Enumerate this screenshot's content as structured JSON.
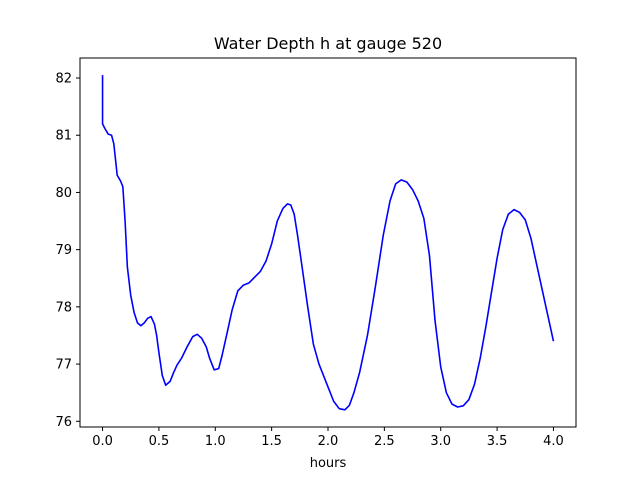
{
  "chart_data": {
    "type": "line",
    "title": "Water Depth h at gauge 520",
    "xlabel": "hours",
    "ylabel": "",
    "xlim": [
      -0.2,
      4.2
    ],
    "ylim": [
      75.9,
      82.35
    ],
    "xticks": [
      0.0,
      0.5,
      1.0,
      1.5,
      2.0,
      2.5,
      3.0,
      3.5,
      4.0
    ],
    "xtick_labels": [
      "0.0",
      "0.5",
      "1.0",
      "1.5",
      "2.0",
      "2.5",
      "3.0",
      "3.5",
      "4.0"
    ],
    "yticks": [
      76,
      77,
      78,
      79,
      80,
      81,
      82
    ],
    "ytick_labels": [
      "76",
      "77",
      "78",
      "79",
      "80",
      "81",
      "82"
    ],
    "grid": false,
    "line_color": "#0000ff",
    "series": [
      {
        "x": [
          0.0,
          0.0,
          0.02,
          0.05,
          0.08,
          0.1,
          0.13,
          0.16,
          0.18,
          0.2,
          0.22,
          0.25,
          0.28,
          0.31,
          0.34,
          0.37,
          0.4,
          0.43,
          0.46,
          0.48,
          0.5,
          0.53,
          0.56,
          0.6,
          0.63,
          0.66,
          0.7,
          0.75,
          0.8,
          0.84,
          0.88,
          0.92,
          0.95,
          0.99,
          1.03,
          1.06,
          1.1,
          1.15,
          1.2,
          1.25,
          1.3,
          1.35,
          1.4,
          1.45,
          1.5,
          1.55,
          1.6,
          1.64,
          1.67,
          1.7,
          1.73,
          1.77,
          1.82,
          1.87,
          1.92,
          2.0,
          2.05,
          2.1,
          2.15,
          2.19,
          2.23,
          2.28,
          2.35,
          2.42,
          2.49,
          2.55,
          2.6,
          2.65,
          2.7,
          2.75,
          2.8,
          2.85,
          2.9,
          2.95,
          3.0,
          3.05,
          3.1,
          3.15,
          3.2,
          3.25,
          3.3,
          3.35,
          3.4,
          3.45,
          3.5,
          3.55,
          3.6,
          3.65,
          3.7,
          3.75,
          3.8,
          3.85,
          3.9,
          3.95,
          4.0
        ],
        "y": [
          82.05,
          81.2,
          81.12,
          81.02,
          81.0,
          80.85,
          80.3,
          80.2,
          80.1,
          79.5,
          78.7,
          78.2,
          77.9,
          77.72,
          77.67,
          77.72,
          77.8,
          77.83,
          77.7,
          77.5,
          77.2,
          76.8,
          76.63,
          76.7,
          76.85,
          76.98,
          77.1,
          77.3,
          77.48,
          77.52,
          77.45,
          77.3,
          77.1,
          76.9,
          76.92,
          77.15,
          77.5,
          77.95,
          78.28,
          78.38,
          78.42,
          78.52,
          78.62,
          78.8,
          79.1,
          79.5,
          79.72,
          79.8,
          79.78,
          79.62,
          79.25,
          78.7,
          78.0,
          77.35,
          77.0,
          76.6,
          76.35,
          76.22,
          76.2,
          76.28,
          76.5,
          76.85,
          77.5,
          78.35,
          79.25,
          79.85,
          80.15,
          80.22,
          80.18,
          80.05,
          79.85,
          79.55,
          78.9,
          77.75,
          76.95,
          76.5,
          76.3,
          76.25,
          76.27,
          76.38,
          76.65,
          77.1,
          77.65,
          78.25,
          78.85,
          79.35,
          79.62,
          79.7,
          79.65,
          79.52,
          79.2,
          78.75,
          78.3,
          77.85,
          77.4
        ]
      }
    ]
  }
}
